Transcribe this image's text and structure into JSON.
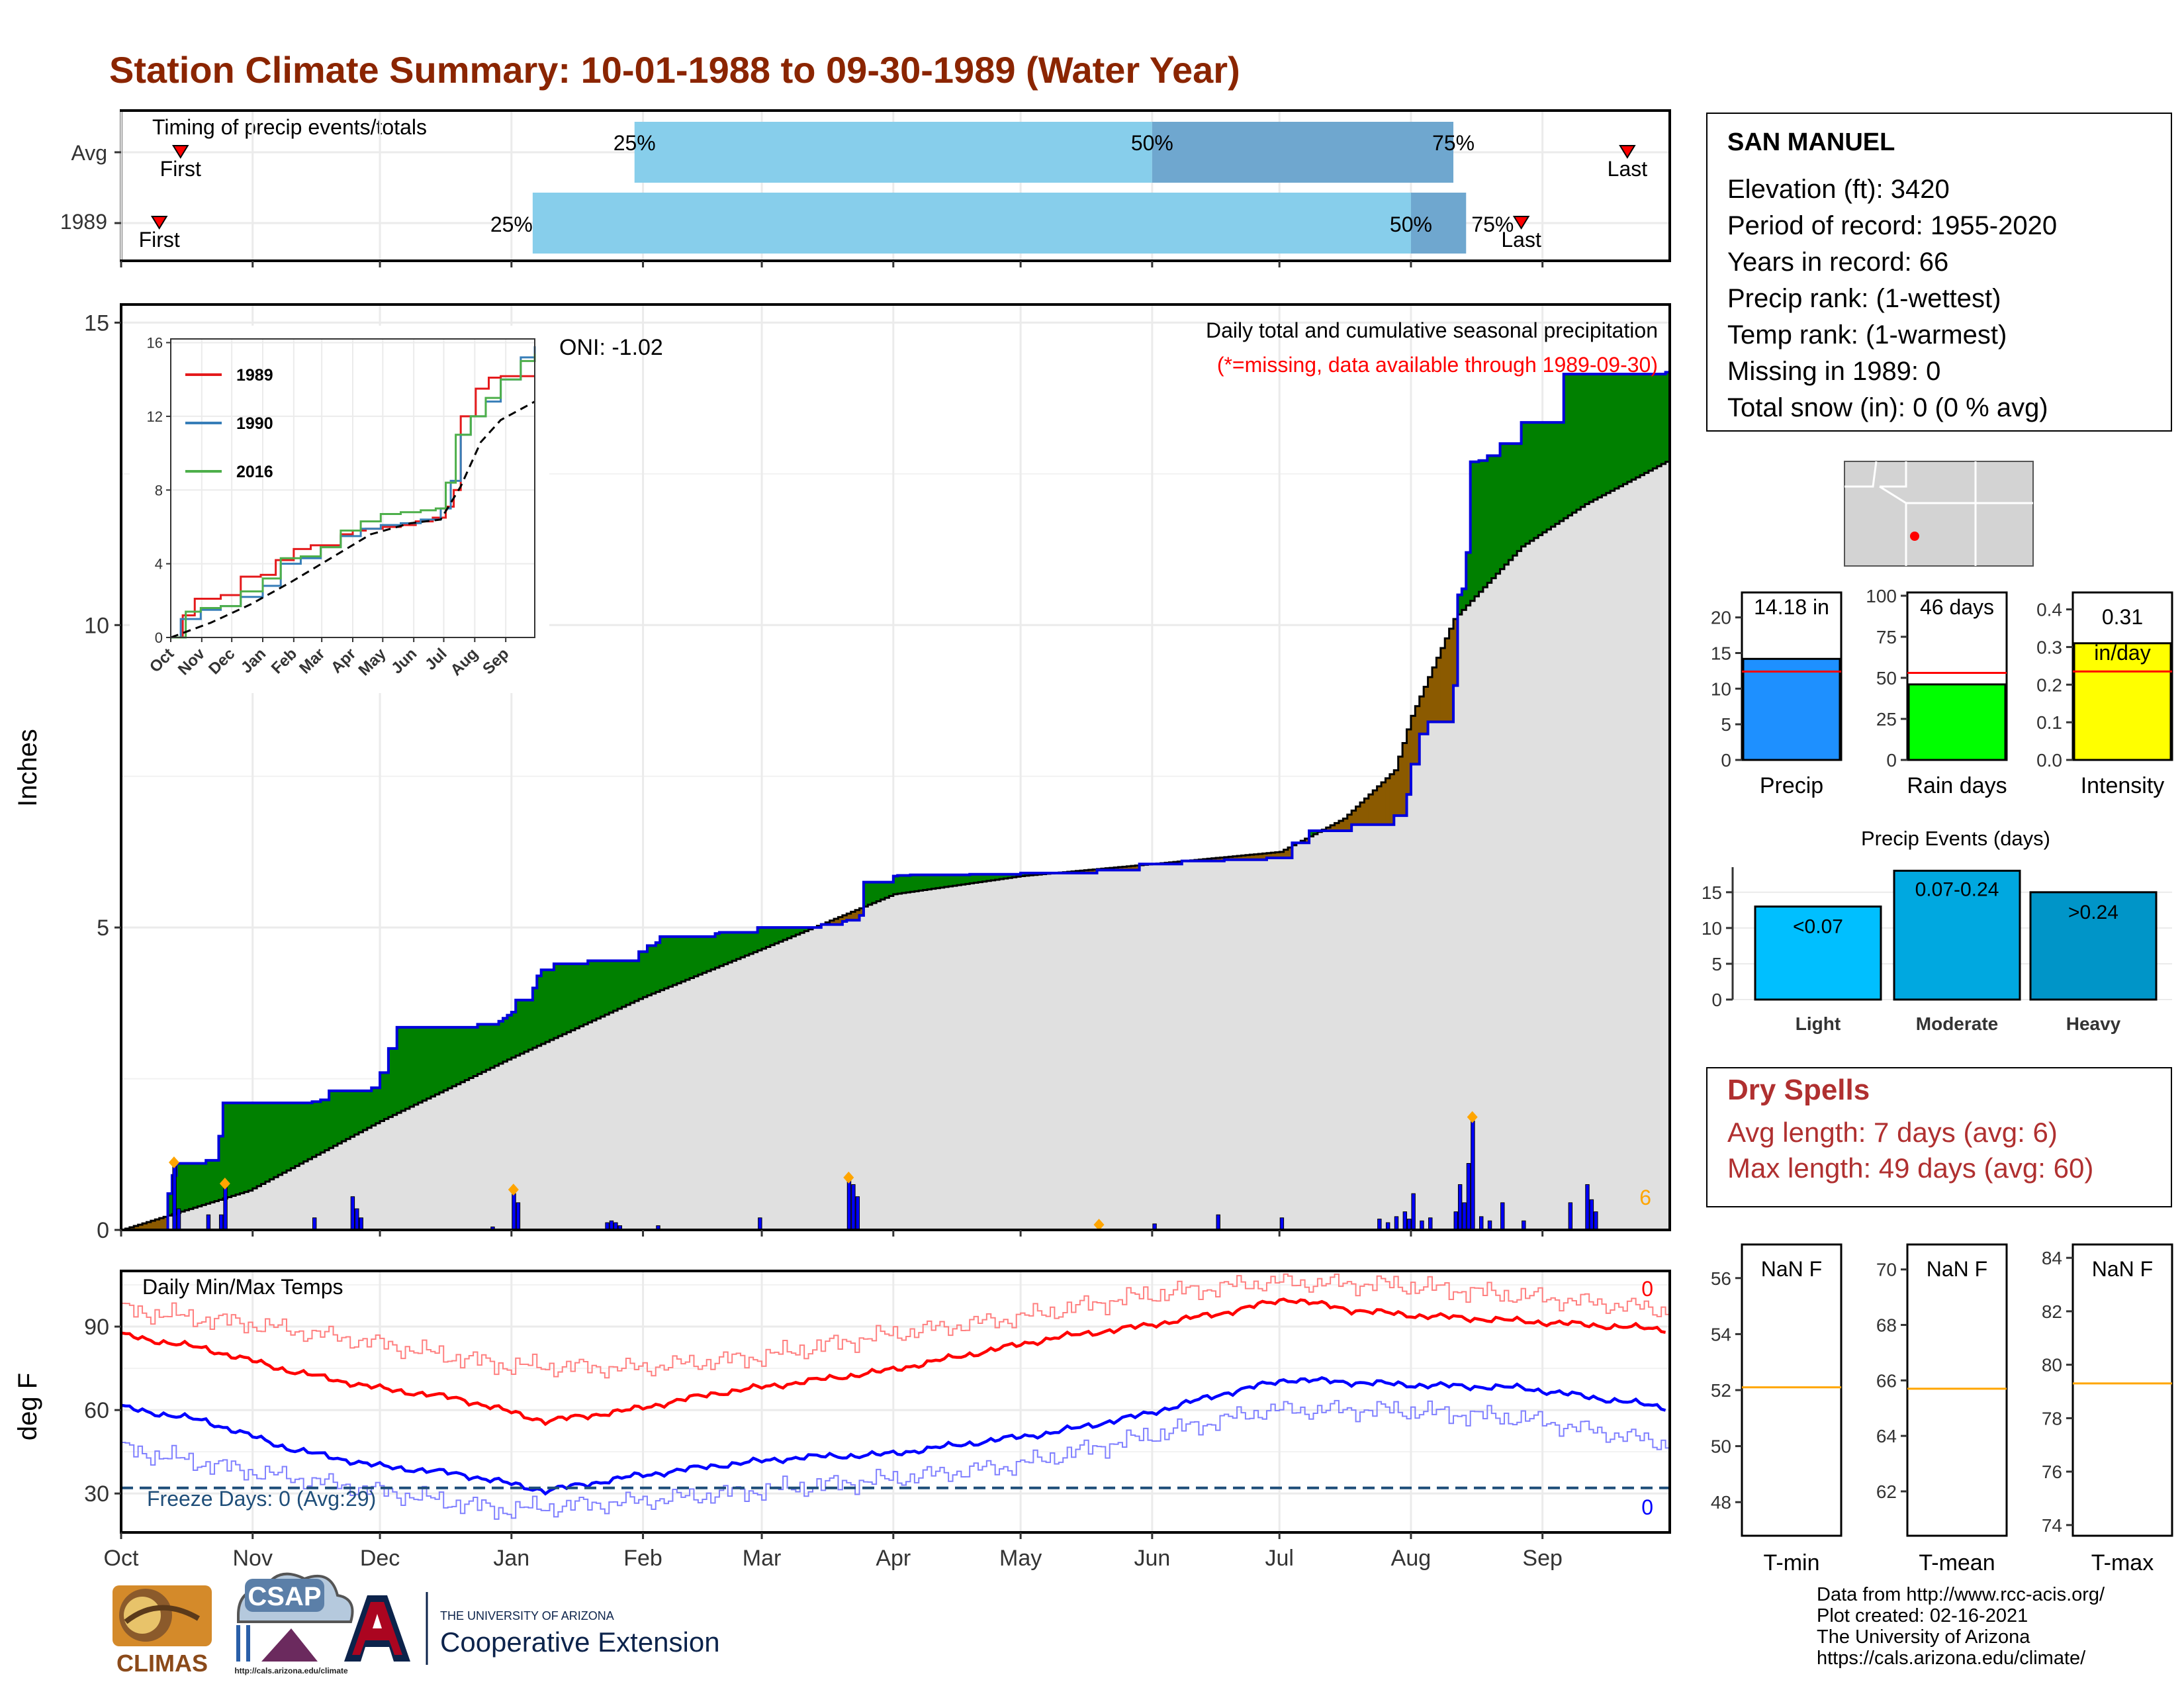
{
  "title": "Station Climate Summary: 10-01-1988 to 09-30-1989 (Water Year)",
  "colors": {
    "title": "#8b2500",
    "surplus": "#008000",
    "deficit": "#8b5a00",
    "normal_fill": "#e0e0e0",
    "daily_bar": "#0000ff",
    "marker": "#ffa500",
    "timing_light": "#87ceeb",
    "timing_dark": "#6fa7cf",
    "tmax": "#ff0000",
    "tmin": "#0000ff"
  },
  "timing": {
    "panel_label": "Timing of precip events/totals",
    "rows": [
      {
        "label": "Avg",
        "first_day": 14,
        "p25": 121,
        "p50": 243,
        "p75": 314,
        "last_day": 355,
        "first_label": "First",
        "last_label": "Last",
        "p25_label": "25%",
        "p50_label": "50%",
        "p75_label": "75%"
      },
      {
        "label": "1989",
        "first_day": 9,
        "p25": 97,
        "p50": 304,
        "p75": 317,
        "last_day": 330,
        "first_label": "First",
        "last_label": "Last",
        "p25_label": "25%",
        "p50_label": "50%",
        "p75_label": "75%"
      }
    ]
  },
  "precip_panel": {
    "ylabel": "Inches",
    "header": "Daily total and cumulative seasonal precipitation",
    "subheader": "(*=missing, data available through 1989-09-30)",
    "oni": "ONI: -1.02",
    "corner_count": "6",
    "yticks": [
      0,
      5,
      10,
      15
    ],
    "ylim": [
      0,
      15.3
    ]
  },
  "month_labels": [
    "Oct",
    "Nov",
    "Dec",
    "Jan",
    "Feb",
    "Mar",
    "Apr",
    "May",
    "Jun",
    "Jul",
    "Aug",
    "Sep"
  ],
  "month_starts": [
    0,
    31,
    61,
    92,
    123,
    151,
    182,
    212,
    243,
    273,
    304,
    335
  ],
  "inset": {
    "yticks": [
      0,
      4,
      8,
      12,
      16
    ],
    "month_labels": [
      "Oct",
      "Nov",
      "Dec",
      "Jan",
      "Feb",
      "Mar",
      "Apr",
      "May",
      "Jun",
      "Jul",
      "Aug",
      "Sep"
    ],
    "legend": [
      {
        "name": "1989",
        "color": "#e41a1c"
      },
      {
        "name": "1990",
        "color": "#377eb8"
      },
      {
        "name": "2016",
        "color": "#4daf4a"
      }
    ]
  },
  "temp_panel": {
    "ylabel": "deg F",
    "title": "Daily Min/Max Temps",
    "freeze_label": "Freeze Days: 0 (Avg:29)",
    "count_max": "0",
    "count_min": "0",
    "yticks": [
      30,
      60,
      90
    ],
    "ylim": [
      16,
      110
    ],
    "freeze_line": 32
  },
  "station": {
    "name": "SAN MANUEL",
    "lines": [
      "Elevation (ft): 3420",
      "Period of record: 1955-2020",
      "Years in record: 66",
      "Precip rank:  (1-wettest)",
      "Temp rank:  (1-warmest)",
      "Missing in 1989: 0",
      "Total snow (in): 0 (0 % avg)"
    ]
  },
  "mini_bars": [
    {
      "name": "Precip",
      "value": 14.18,
      "avg": 12.4,
      "label": "14.18 in",
      "color": "#1e90ff",
      "ticks": [
        0,
        5,
        10,
        15,
        20
      ],
      "ymax": 23.5
    },
    {
      "name": "Rain days",
      "value": 46,
      "avg": 53,
      "label": "46 days",
      "color": "#00ff00",
      "ticks": [
        0,
        25,
        50,
        75,
        100
      ],
      "ymax": 102
    },
    {
      "name": "Intensity",
      "value": 0.31,
      "avg": 0.235,
      "label": "0.31",
      "label2": "in/day",
      "color": "#ffff00",
      "ticks": [
        0.0,
        0.1,
        0.2,
        0.3,
        0.4
      ],
      "ymax": 0.445
    }
  ],
  "events": {
    "title": "Precip Events (days)",
    "categories": [
      "Light",
      "Moderate",
      "Heavy"
    ],
    "values": [
      13,
      18,
      15
    ],
    "labels": [
      "<0.07",
      "0.07-0.24",
      ">0.24"
    ],
    "colors": [
      "#00bfff",
      "#00a8e0",
      "#0095c8"
    ],
    "ticks": [
      0,
      5,
      10,
      15
    ],
    "ymax": 18.5
  },
  "dry_spells": {
    "title": "Dry Spells",
    "avg_length": "Avg length: 7 days (avg: 6)",
    "max_length": "Max length: 49 days (avg: 60)"
  },
  "temp_bars": [
    {
      "name": "T-min",
      "label": "NaN F",
      "avg": 52.1,
      "ticks": [
        48,
        50,
        52,
        54,
        56
      ],
      "range": [
        46.8,
        57.2
      ]
    },
    {
      "name": "T-mean",
      "label": "NaN F",
      "avg": 65.7,
      "ticks": [
        62,
        64,
        66,
        68,
        70
      ],
      "range": [
        60.4,
        70.9
      ]
    },
    {
      "name": "T-max",
      "label": "NaN F",
      "avg": 79.3,
      "ticks": [
        74,
        76,
        78,
        80,
        82,
        84
      ],
      "range": [
        73.6,
        84.5
      ]
    }
  ],
  "footer": [
    "Data from http://www.rcc-acis.org/",
    "Plot created: 02-16-2021",
    "The University of Arizona",
    "https://cals.arizona.edu/climate/"
  ],
  "logos": {
    "climas": "CLIMAS",
    "csap": "CSAP",
    "csap_url": "http://cals.arizona.edu/climate",
    "ua_small": "THE UNIVERSITY OF ARIZONA",
    "ua_big": "Cooperative Extension"
  },
  "chart_data": [
    {
      "type": "area",
      "title": "Daily total and cumulative seasonal precipitation",
      "ylabel": "Inches",
      "ylim": [
        0,
        15.3
      ],
      "cumulative_1989": {
        "x_day": [
          0,
          9,
          11,
          12,
          13,
          20,
          23,
          24,
          45,
          47,
          49,
          59,
          61,
          63,
          65,
          84,
          89,
          90,
          91,
          92,
          93,
          97,
          98,
          99,
          102,
          110,
          122,
          124,
          126,
          127,
          140,
          141,
          150,
          165,
          170,
          171,
          174,
          175,
          182,
          183,
          186,
          200,
          212,
          230,
          240,
          250,
          260,
          270,
          276,
          280,
          290,
          300,
          303,
          304,
          306,
          308,
          314,
          315,
          316,
          317,
          318,
          320,
          322,
          325,
          330,
          340,
          364
        ],
        "y": [
          0,
          0,
          0.6,
          0.9,
          1.1,
          1.15,
          1.55,
          2.1,
          2.12,
          2.15,
          2.3,
          2.35,
          2.6,
          3.0,
          3.35,
          3.4,
          3.45,
          3.5,
          3.55,
          3.6,
          3.8,
          4.0,
          4.2,
          4.3,
          4.4,
          4.45,
          4.6,
          4.7,
          4.75,
          4.85,
          4.9,
          4.92,
          5.0,
          5.05,
          5.1,
          5.12,
          5.2,
          5.75,
          5.85,
          5.86,
          5.87,
          5.88,
          5.9,
          5.95,
          6.05,
          6.1,
          6.12,
          6.15,
          6.4,
          6.6,
          6.7,
          6.85,
          7.2,
          7.7,
          8.2,
          8.4,
          9.0,
          10.5,
          10.6,
          11.2,
          12.7,
          12.72,
          12.8,
          13.0,
          13.35,
          14.15,
          14.18
        ]
      },
      "normal_cumulative": {
        "x_day": [
          0,
          30,
          61,
          92,
          123,
          151,
          182,
          212,
          243,
          273,
          288,
          300,
          304,
          314,
          330,
          345,
          364
        ],
        "y": [
          0,
          0.65,
          1.8,
          2.85,
          3.85,
          4.65,
          5.55,
          5.85,
          6.05,
          6.25,
          6.8,
          7.6,
          8.5,
          10.1,
          11.3,
          12.0,
          12.7
        ]
      },
      "daily_bars": {
        "x_day": [
          12,
          13,
          20,
          23,
          24,
          45,
          54,
          55,
          56,
          87,
          92,
          93,
          114,
          115,
          116,
          117,
          126,
          150,
          171,
          172,
          173,
          243,
          258,
          273,
          296,
          298,
          300,
          302,
          303,
          304,
          306,
          308,
          314,
          315,
          316,
          317,
          318,
          320,
          322,
          325,
          330,
          341,
          345,
          346,
          347
        ],
        "y": [
          1.05,
          0.35,
          0.25,
          0.25,
          0.7,
          0.2,
          0.55,
          0.35,
          0.2,
          0.05,
          0.6,
          0.45,
          0.12,
          0.15,
          0.12,
          0.07,
          0.07,
          0.2,
          0.85,
          0.75,
          0.55,
          0.1,
          0.25,
          0.2,
          0.18,
          0.12,
          0.22,
          0.3,
          0.18,
          0.6,
          0.15,
          0.2,
          0.3,
          0.75,
          0.45,
          1.1,
          1.8,
          0.22,
          0.15,
          0.45,
          0.15,
          0.45,
          0.75,
          0.5,
          0.3
        ]
      }
    },
    {
      "type": "line",
      "title": "Daily Min/Max Temps",
      "ylabel": "deg F",
      "ylim": [
        16,
        110
      ],
      "series": [
        {
          "name": "tmax_avg",
          "x_day": [
            0,
            20,
            40,
            60,
            80,
            90,
            100,
            120,
            140,
            160,
            180,
            200,
            220,
            240,
            260,
            275,
            290,
            305,
            330,
            364
          ],
          "y": [
            87,
            82,
            74,
            68,
            64,
            60,
            56,
            60,
            66,
            70,
            74,
            80,
            86,
            90,
            95,
            100,
            96,
            94,
            92,
            89
          ]
        },
        {
          "name": "tmin_avg",
          "x_day": [
            0,
            20,
            40,
            60,
            80,
            90,
            100,
            120,
            140,
            160,
            180,
            200,
            220,
            240,
            260,
            275,
            290,
            305,
            330,
            364
          ],
          "y": [
            61,
            56,
            46,
            40,
            37,
            34,
            31,
            36,
            40,
            43,
            44,
            48,
            52,
            58,
            66,
            71,
            70,
            69,
            68,
            61
          ]
        },
        {
          "name": "tmax_record",
          "x_day": [
            0,
            30,
            60,
            90,
            120,
            150,
            180,
            210,
            240,
            270,
            300,
            330,
            364
          ],
          "y": [
            96,
            91,
            84,
            76,
            75,
            79,
            87,
            93,
            101,
            106,
            105,
            101,
            96
          ]
        },
        {
          "name": "tmin_record",
          "x_day": [
            0,
            30,
            60,
            90,
            120,
            150,
            180,
            210,
            240,
            270,
            300,
            330,
            364
          ],
          "y": [
            46,
            38,
            31,
            24,
            27,
            31,
            35,
            40,
            50,
            60,
            60,
            57,
            48
          ]
        }
      ]
    },
    {
      "type": "line",
      "title": "",
      "ylim": [
        0,
        16
      ],
      "series": [
        {
          "name": "1989",
          "x_day": [
            0,
            12,
            24,
            50,
            70,
            90,
            105,
            123,
            140,
            155,
            170,
            182,
            195,
            212,
            230,
            245,
            262,
            275,
            283,
            290,
            305,
            318,
            330,
            364
          ],
          "y": [
            0,
            1.2,
            2.1,
            2.3,
            3.3,
            3.4,
            4.2,
            4.8,
            5.0,
            5.0,
            5.6,
            5.8,
            5.9,
            6.0,
            6.1,
            6.3,
            6.5,
            7.1,
            8.0,
            12.0,
            13.5,
            14.1,
            14.18,
            14.18
          ]
        },
        {
          "name": "1990",
          "x_day": [
            0,
            10,
            30,
            50,
            70,
            92,
            110,
            130,
            150,
            170,
            190,
            210,
            230,
            250,
            270,
            280,
            290,
            300,
            315,
            330,
            350,
            364
          ],
          "y": [
            0,
            1.0,
            1.5,
            1.7,
            2.2,
            2.8,
            4.0,
            4.3,
            4.9,
            5.5,
            5.9,
            6.1,
            6.2,
            6.4,
            7.0,
            8.5,
            11.0,
            12.0,
            12.8,
            14.0,
            15.2,
            15.8
          ]
        },
        {
          "name": "2016",
          "x_day": [
            0,
            15,
            30,
            50,
            70,
            92,
            110,
            130,
            150,
            170,
            190,
            210,
            230,
            250,
            265,
            275,
            285,
            300,
            315,
            330,
            350,
            364
          ],
          "y": [
            0,
            1.4,
            1.6,
            1.7,
            2.5,
            3.2,
            4.3,
            4.4,
            4.9,
            5.8,
            6.3,
            6.7,
            6.8,
            6.9,
            7.0,
            8.4,
            11.0,
            12.0,
            13.0,
            14.0,
            15.0,
            15.4
          ]
        },
        {
          "name": "avg",
          "x_day": [
            0,
            40,
            80,
            120,
            160,
            200,
            240,
            270,
            290,
            310,
            330,
            364
          ],
          "y": [
            0,
            0.8,
            1.8,
            3.0,
            4.3,
            5.6,
            6.2,
            6.4,
            8.2,
            10.6,
            11.8,
            12.8
          ]
        }
      ]
    }
  ]
}
